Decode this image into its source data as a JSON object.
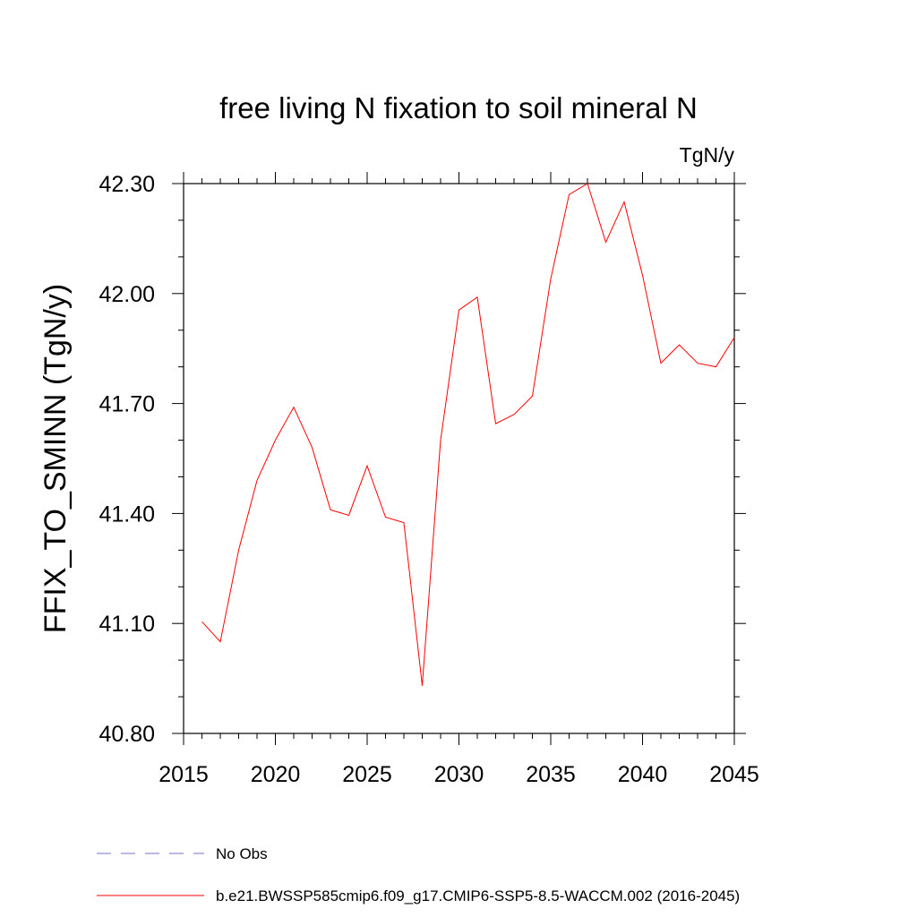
{
  "chart_data": {
    "type": "line",
    "title": "free living N fixation to soil mineral N",
    "units_label": "TgN/y",
    "ylabel": "FFIX_TO_SMINN  (TgN/y)",
    "xlabel": "",
    "xlim": [
      2015,
      2045
    ],
    "ylim": [
      40.8,
      42.3
    ],
    "x_ticks": [
      "2015",
      "2020",
      "2025",
      "2030",
      "2035",
      "2040",
      "2045"
    ],
    "y_ticks": [
      "40.80",
      "41.10",
      "41.40",
      "41.70",
      "42.00",
      "42.30"
    ],
    "x": [
      2016,
      2017,
      2018,
      2019,
      2020,
      2021,
      2022,
      2023,
      2024,
      2025,
      2026,
      2027,
      2028,
      2029,
      2030,
      2031,
      2032,
      2033,
      2034,
      2035,
      2036,
      2037,
      2038,
      2039,
      2040,
      2041,
      2042,
      2043,
      2044,
      2045
    ],
    "series": [
      {
        "name": "b.e21.BWSSP585cmip6.f09_g17.CMIP6-SSP5-8.5-WACCM.002 (2016-2045)",
        "color": "#ff0000",
        "style": "solid",
        "values": [
          41.105,
          41.05,
          41.3,
          41.49,
          41.6,
          41.69,
          41.58,
          41.41,
          41.395,
          41.53,
          41.39,
          41.375,
          40.93,
          41.6,
          41.955,
          41.99,
          41.645,
          41.67,
          41.72,
          42.04,
          42.27,
          42.3,
          42.14,
          42.25,
          42.05,
          41.81,
          41.86,
          41.81,
          41.8,
          41.88
        ]
      }
    ],
    "legend": [
      {
        "label": "No Obs",
        "color": "#7070c0",
        "style": "dashed"
      },
      {
        "label": "b.e21.BWSSP585cmip6.f09_g17.CMIP6-SSP5-8.5-WACCM.002 (2016-2045)",
        "color": "#ff0000",
        "style": "solid"
      }
    ],
    "grid": false,
    "legend_position": "bottom"
  }
}
